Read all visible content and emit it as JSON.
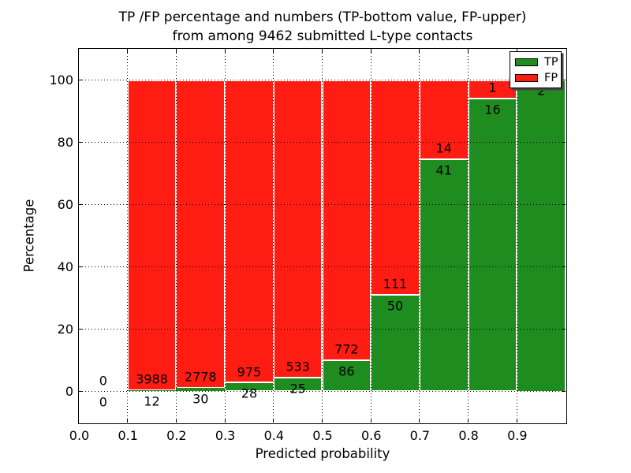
{
  "chart_data": {
    "type": "bar",
    "stacked": true,
    "title_line1": "TP /FP percentage and numbers (TP-bottom value, FP-upper)",
    "title_line2": "from among 9462 submitted L-type contacts",
    "xlabel": "Predicted probability",
    "ylabel": "Percentage",
    "xlim": [
      0.0,
      1.0
    ],
    "ylim": [
      -10,
      110
    ],
    "x_ticks": [
      "0.0",
      "0.1",
      "0.2",
      "0.3",
      "0.4",
      "0.5",
      "0.6",
      "0.7",
      "0.8",
      "0.9"
    ],
    "y_ticks": [
      0,
      20,
      40,
      60,
      80,
      100
    ],
    "grid": "dotted-black-over-bars",
    "total_submitted_contacts": 9462,
    "legend": {
      "position": "upper-right",
      "entries": [
        {
          "label": "TP",
          "color": "#1f8c1f"
        },
        {
          "label": "FP",
          "color": "#ff1d13"
        }
      ]
    },
    "colors": {
      "tp": "#1f8c1f",
      "fp": "#ff1d13",
      "bar_edge": "#ffffff"
    },
    "bins": [
      {
        "range": "0.0-0.1",
        "tp": 0,
        "fp": 0
      },
      {
        "range": "0.1-0.2",
        "tp": 12,
        "fp": 3988
      },
      {
        "range": "0.2-0.3",
        "tp": 30,
        "fp": 2778
      },
      {
        "range": "0.3-0.4",
        "tp": 28,
        "fp": 975
      },
      {
        "range": "0.4-0.5",
        "tp": 25,
        "fp": 533
      },
      {
        "range": "0.5-0.6",
        "tp": 86,
        "fp": 772
      },
      {
        "range": "0.6-0.7",
        "tp": 50,
        "fp": 111
      },
      {
        "range": "0.7-0.8",
        "tp": 41,
        "fp": 14
      },
      {
        "range": "0.8-0.9",
        "tp": 16,
        "fp": 1
      },
      {
        "range": "0.9-1.0",
        "tp": 2,
        "fp": 0,
        "note": "FP count label covered by legend box"
      }
    ]
  }
}
